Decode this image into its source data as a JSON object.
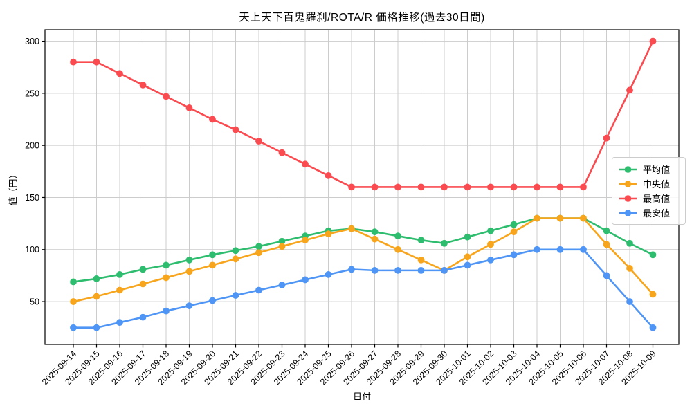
{
  "title": "天上天下百鬼羅刹/ROTA/R 価格推移(過去30日間)",
  "chart_data": {
    "type": "line",
    "title": "天上天下百鬼羅刹/ROTA/R 価格推移(過去30日間)",
    "xlabel": "日付",
    "ylabel": "値（円）",
    "grid": true,
    "legend_position": "center right",
    "ylim": [
      9,
      311
    ],
    "yticks": [
      50,
      100,
      150,
      200,
      250,
      300
    ],
    "x": [
      "2025-09-14",
      "2025-09-15",
      "2025-09-16",
      "2025-09-17",
      "2025-09-18",
      "2025-09-19",
      "2025-09-20",
      "2025-09-21",
      "2025-09-22",
      "2025-09-23",
      "2025-09-24",
      "2025-09-25",
      "2025-09-26",
      "2025-09-27",
      "2025-09-28",
      "2025-09-29",
      "2025-09-30",
      "2025-10-01",
      "2025-10-02",
      "2025-10-03",
      "2025-10-04",
      "2025-10-05",
      "2025-10-06",
      "2025-10-07",
      "2025-10-08",
      "2025-10-09"
    ],
    "series": [
      {
        "key": "average",
        "name": "平均値",
        "color": "#2ebd6f",
        "values": [
          69,
          72,
          76,
          81,
          85,
          90,
          95,
          99,
          103,
          108,
          113,
          118,
          120,
          117,
          113,
          109,
          106,
          112,
          118,
          124,
          130,
          130,
          130,
          118,
          106,
          95
        ]
      },
      {
        "key": "median",
        "name": "中央値",
        "color": "#f7a51c",
        "values": [
          50,
          55,
          61,
          67,
          73,
          79,
          85,
          91,
          97,
          103,
          109,
          115,
          120,
          110,
          100,
          90,
          80,
          93,
          105,
          117,
          130,
          130,
          130,
          105,
          82,
          57
        ]
      },
      {
        "key": "highest",
        "name": "最高値",
        "color": "#fa4b50",
        "values": [
          280,
          280,
          269,
          258,
          247,
          236,
          225,
          215,
          204,
          193,
          182,
          171,
          160,
          160,
          160,
          160,
          160,
          160,
          160,
          160,
          160,
          160,
          160,
          207,
          253,
          300
        ]
      },
      {
        "key": "lowest",
        "name": "最安値",
        "color": "#4e95f5",
        "values": [
          25,
          25,
          30,
          35,
          41,
          46,
          51,
          56,
          61,
          66,
          71,
          76,
          81,
          80,
          80,
          80,
          80,
          85,
          90,
          95,
          100,
          100,
          100,
          75,
          50,
          25
        ]
      }
    ]
  }
}
